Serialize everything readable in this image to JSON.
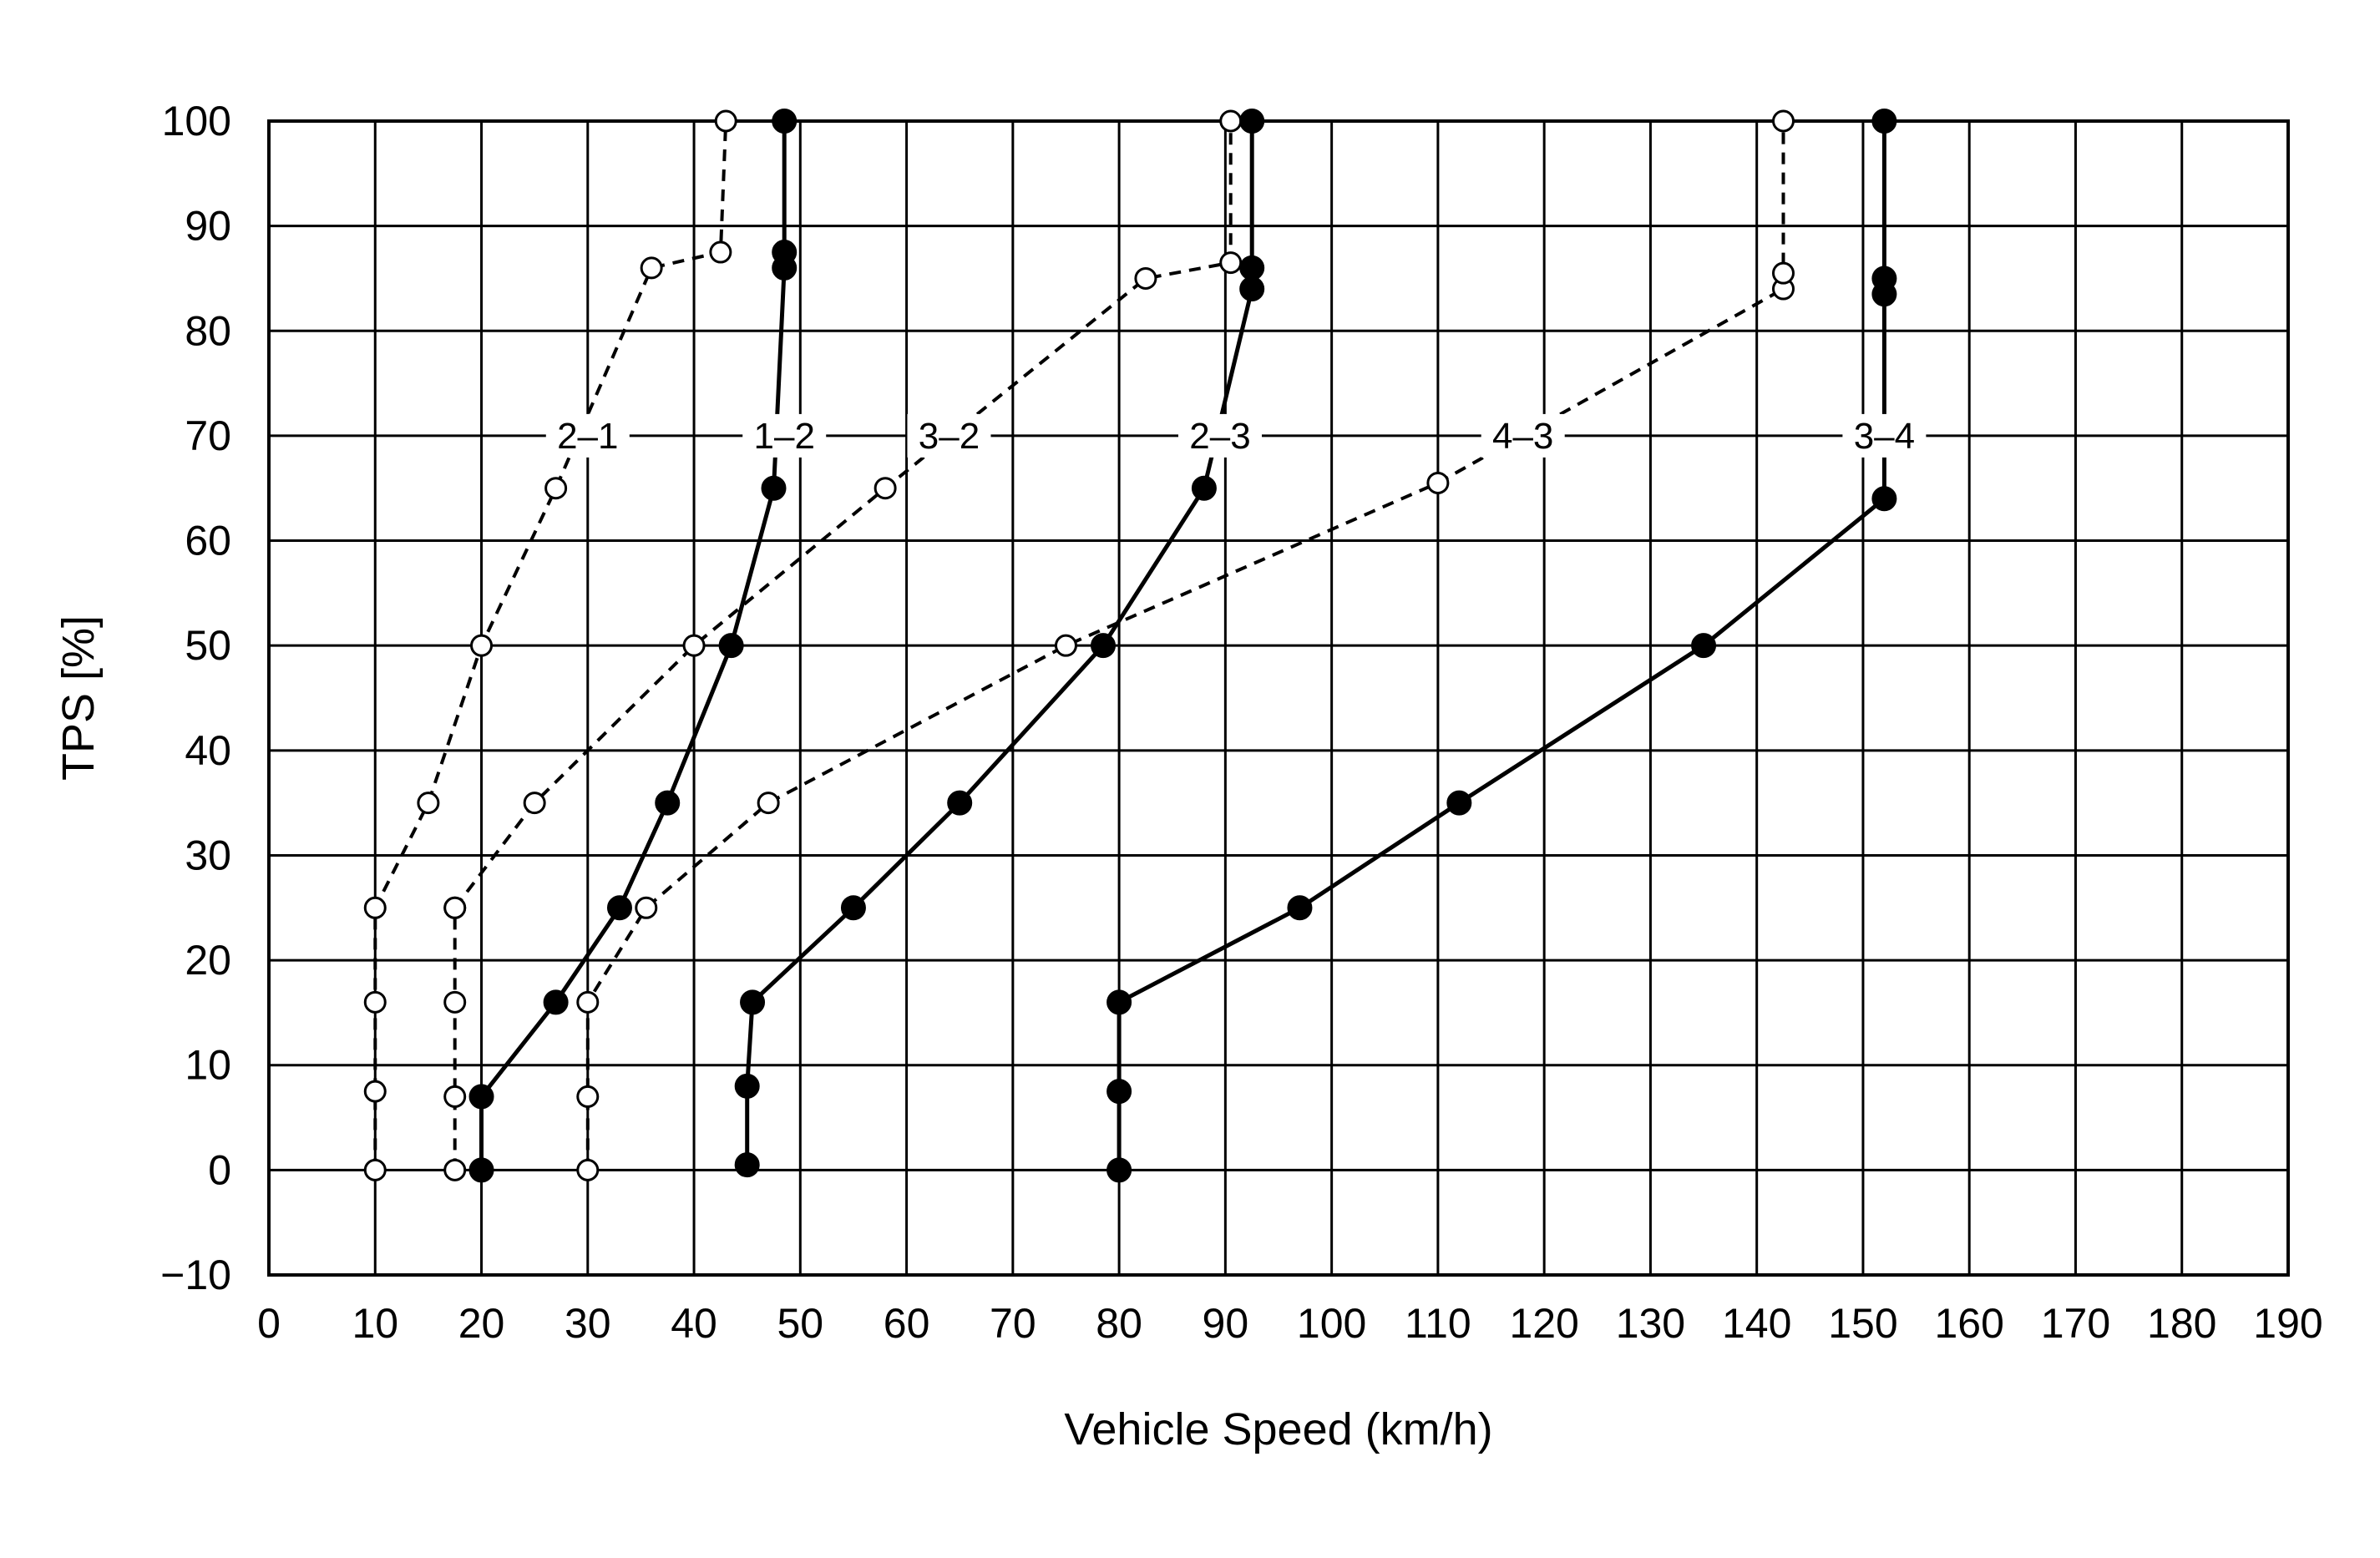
{
  "chart_data": {
    "type": "line",
    "title": "",
    "xlabel": "Vehicle Speed (km/h)",
    "ylabel": "TPS [%]",
    "xlim": [
      0,
      190
    ],
    "ylim": [
      -10,
      100
    ],
    "x_ticks": [
      0,
      10,
      20,
      30,
      40,
      50,
      60,
      70,
      80,
      90,
      100,
      110,
      120,
      130,
      140,
      150,
      160,
      170,
      180,
      190
    ],
    "y_ticks": [
      -10,
      0,
      10,
      20,
      30,
      40,
      50,
      60,
      70,
      80,
      90,
      100
    ],
    "x_tick_labels": [
      "0",
      "10",
      "20",
      "30",
      "40",
      "50",
      "60",
      "70",
      "80",
      "90",
      "100",
      "110",
      "120",
      "130",
      "140",
      "150",
      "160",
      "170",
      "180",
      "190"
    ],
    "y_tick_labels": [
      "−10",
      "0",
      "10",
      "20",
      "30",
      "40",
      "50",
      "60",
      "70",
      "80",
      "90",
      "100"
    ],
    "grid": true,
    "legend": "none",
    "series": [
      {
        "name": "2–1",
        "style": "dashed",
        "marker": "open-circle",
        "points": [
          [
            10,
            0
          ],
          [
            10,
            7.5
          ],
          [
            10,
            16
          ],
          [
            10,
            25
          ],
          [
            15,
            35
          ],
          [
            20,
            50
          ],
          [
            27,
            65
          ],
          [
            36,
            86
          ],
          [
            42.5,
            87.5
          ],
          [
            43,
            100
          ]
        ]
      },
      {
        "name": "",
        "style": "dashed",
        "marker": "open-circle",
        "points": [
          [
            17.5,
            0
          ],
          [
            17.5,
            7
          ],
          [
            17.5,
            16
          ],
          [
            17.5,
            25
          ]
        ]
      },
      {
        "name": "1–2",
        "style": "solid",
        "marker": "filled-circle",
        "points": [
          [
            20,
            0
          ],
          [
            20,
            7
          ],
          [
            27,
            16
          ],
          [
            33,
            25
          ],
          [
            37.5,
            35
          ],
          [
            43.5,
            50
          ],
          [
            47.5,
            65
          ],
          [
            48.5,
            86
          ],
          [
            48.5,
            87.5
          ],
          [
            48.5,
            100
          ]
        ]
      },
      {
        "name": "3–2",
        "style": "dashed",
        "marker": "open-circle",
        "points": [
          [
            30,
            0
          ],
          [
            30,
            7
          ],
          [
            30,
            16
          ],
          [
            35.5,
            25
          ],
          [
            47,
            35
          ],
          [
            75,
            50
          ],
          [
            110,
            65.5
          ],
          [
            142.5,
            84
          ],
          [
            142.5,
            85.5
          ],
          [
            142.5,
            100
          ]
        ]
      },
      {
        "name": "",
        "style": "dashed",
        "marker": "open-circle",
        "points": [
          [
            17.5,
            25
          ],
          [
            25,
            35
          ],
          [
            40,
            50
          ],
          [
            58,
            65
          ],
          [
            82.5,
            85
          ],
          [
            90.5,
            86.5
          ],
          [
            90.5,
            100
          ]
        ]
      },
      {
        "name": "2–3",
        "style": "solid",
        "marker": "filled-circle",
        "points": [
          [
            45,
            0.5
          ],
          [
            45,
            8
          ],
          [
            45.5,
            16
          ],
          [
            55,
            25
          ],
          [
            65,
            35
          ],
          [
            78.5,
            50
          ],
          [
            88,
            65
          ],
          [
            92.5,
            84
          ],
          [
            92.5,
            86
          ],
          [
            92.5,
            100
          ]
        ]
      },
      {
        "name": "3–4",
        "style": "solid",
        "marker": "filled-circle",
        "points": [
          [
            80,
            0
          ],
          [
            80,
            7.5
          ],
          [
            80,
            16
          ],
          [
            97,
            25
          ],
          [
            112,
            35
          ],
          [
            135,
            50
          ],
          [
            152,
            64
          ],
          [
            152,
            83.5
          ],
          [
            152,
            85
          ],
          [
            152,
            100
          ]
        ]
      }
    ],
    "annotations": [
      {
        "text": "2–1",
        "x": 30,
        "y": 70
      },
      {
        "text": "1–2",
        "x": 48.5,
        "y": 70
      },
      {
        "text": "3–2",
        "x": 64,
        "y": 70
      },
      {
        "text": "2–3",
        "x": 89.5,
        "y": 70
      },
      {
        "text": "4–3",
        "x": 118,
        "y": 70
      },
      {
        "text": "3–4",
        "x": 152,
        "y": 70
      }
    ]
  }
}
